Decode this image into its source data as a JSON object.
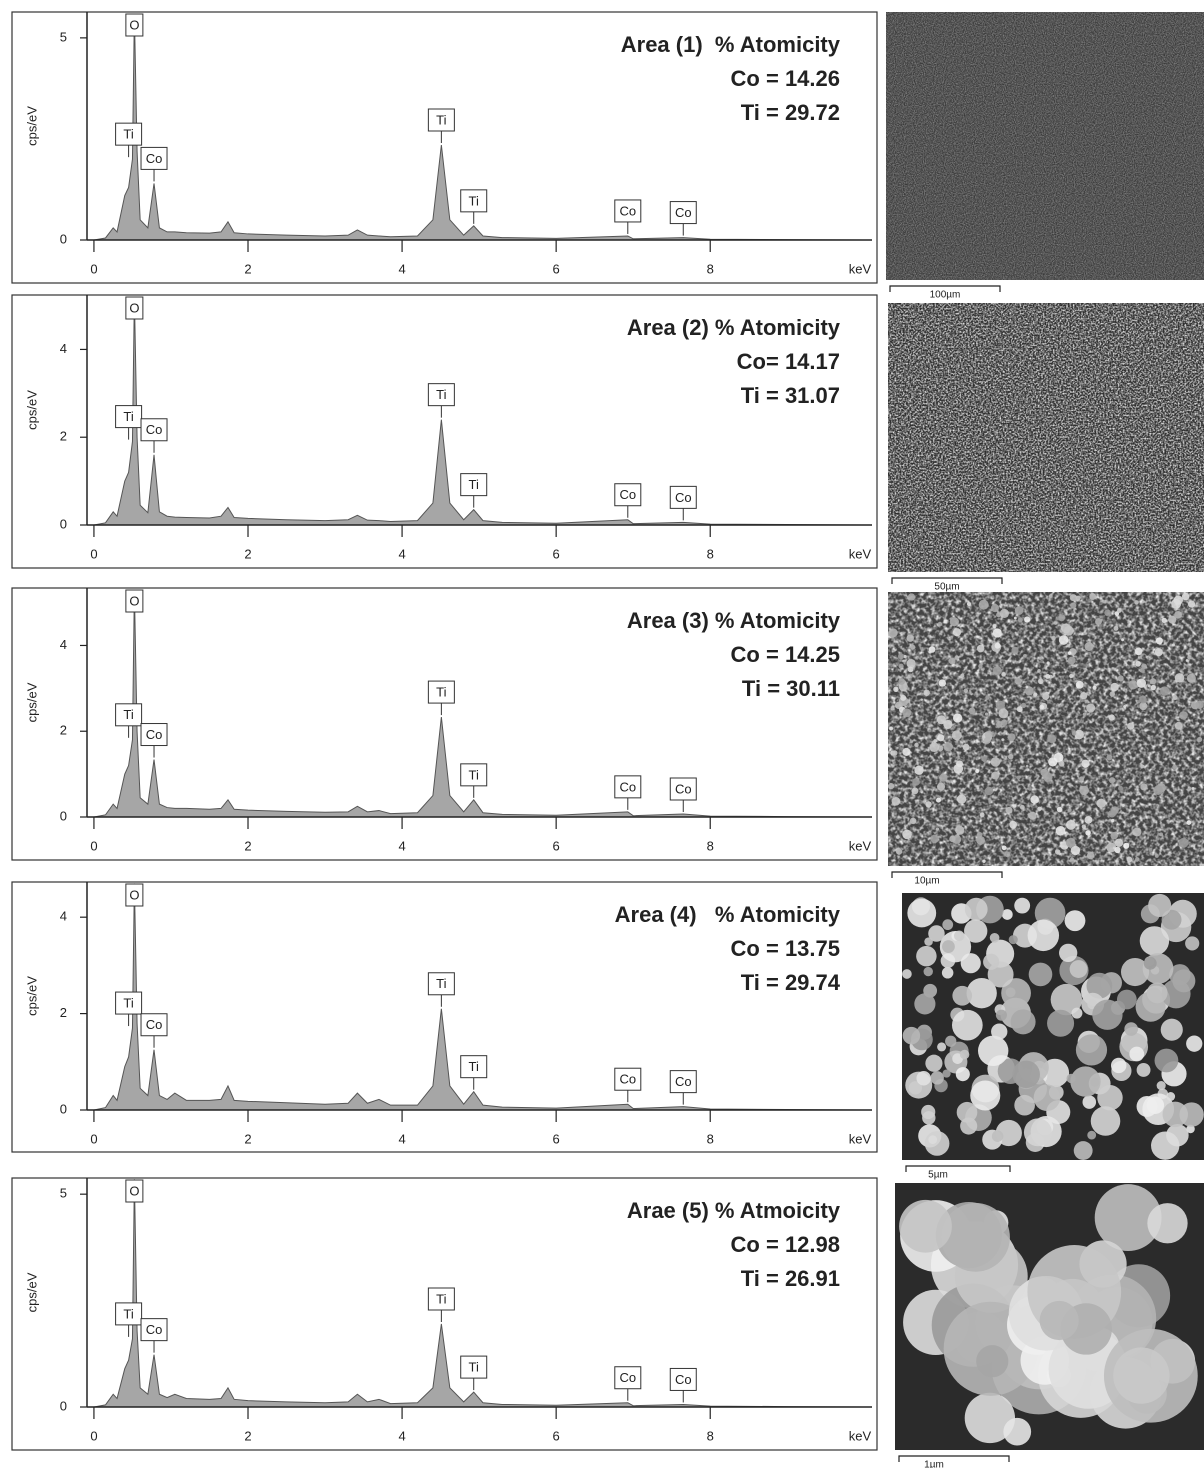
{
  "chart_data": [
    {
      "type": "area",
      "y_label": "cps/eV",
      "x_label": "keV",
      "color": "#a6a6a6",
      "annotation": [
        "Area (1)  % Atomicity",
        "Co = 14.26",
        "Ti = 29.72"
      ],
      "x": [
        0,
        0.15,
        0.25,
        0.3,
        0.4,
        0.45,
        0.5,
        0.525,
        0.56,
        0.6,
        0.7,
        0.78,
        0.85,
        0.95,
        1.05,
        1.2,
        1.5,
        1.65,
        1.74,
        1.82,
        2.0,
        2.5,
        3.0,
        3.3,
        3.42,
        3.55,
        3.7,
        3.85,
        4.2,
        4.4,
        4.51,
        4.62,
        4.8,
        4.93,
        5.05,
        5.3,
        6.0,
        6.93,
        7.0,
        7.65,
        8.0,
        9.0,
        10.0
      ],
      "values": [
        0,
        0.05,
        0.3,
        0.2,
        1.1,
        1.3,
        2.0,
        5.6,
        2.2,
        0.5,
        0.3,
        1.4,
        0.3,
        0.2,
        0.2,
        0.18,
        0.17,
        0.2,
        0.45,
        0.18,
        0.15,
        0.12,
        0.1,
        0.12,
        0.25,
        0.12,
        0.1,
        0.08,
        0.1,
        0.5,
        2.35,
        0.5,
        0.12,
        0.35,
        0.1,
        0.06,
        0.04,
        0.1,
        0.03,
        0.06,
        0.02,
        0.01,
        0
      ],
      "xlim": [
        -0.09,
        10.1
      ],
      "ylim": [
        0,
        5.64
      ],
      "xticks": [
        0,
        2,
        4,
        6,
        8
      ],
      "yticks": [
        0,
        5
      ],
      "peak_labels": [
        {
          "label": "O",
          "x": 0.525
        },
        {
          "label": "Ti",
          "x": 0.45
        },
        {
          "label": "Co",
          "x": 0.78
        },
        {
          "label": "Ti",
          "x": 4.51
        },
        {
          "label": "Ti",
          "x": 4.93
        },
        {
          "label": "Co",
          "x": 6.93
        },
        {
          "label": "Co",
          "x": 7.65
        }
      ]
    },
    {
      "type": "area",
      "y_label": "cps/eV",
      "x_label": "keV",
      "color": "#a6a6a6",
      "annotation": [
        "Area (2) % Atomicity",
        "Co= 14.17",
        "Ti = 31.07"
      ],
      "x": [
        0,
        0.15,
        0.25,
        0.3,
        0.4,
        0.45,
        0.5,
        0.525,
        0.56,
        0.6,
        0.7,
        0.78,
        0.85,
        0.95,
        1.05,
        1.2,
        1.5,
        1.65,
        1.74,
        1.82,
        2.0,
        2.5,
        3.0,
        3.3,
        3.42,
        3.55,
        3.7,
        3.85,
        4.2,
        4.4,
        4.51,
        4.62,
        4.8,
        4.93,
        5.05,
        5.3,
        6.0,
        6.93,
        7.0,
        7.65,
        8.0,
        9.0,
        10.0
      ],
      "values": [
        0,
        0.05,
        0.3,
        0.2,
        1.0,
        1.2,
        1.9,
        5.2,
        2.0,
        0.45,
        0.28,
        1.6,
        0.3,
        0.2,
        0.18,
        0.17,
        0.16,
        0.2,
        0.4,
        0.17,
        0.15,
        0.12,
        0.1,
        0.12,
        0.22,
        0.11,
        0.1,
        0.08,
        0.1,
        0.5,
        2.4,
        0.5,
        0.12,
        0.35,
        0.1,
        0.06,
        0.04,
        0.12,
        0.03,
        0.06,
        0.02,
        0.01,
        0
      ],
      "xlim": [
        -0.09,
        10.1
      ],
      "ylim": [
        0,
        5.24
      ],
      "xticks": [
        0,
        2,
        4,
        6,
        8
      ],
      "yticks": [
        0,
        2,
        4
      ],
      "peak_labels": [
        {
          "label": "O",
          "x": 0.525
        },
        {
          "label": "Ti",
          "x": 0.45
        },
        {
          "label": "Co",
          "x": 0.78
        },
        {
          "label": "Ti",
          "x": 4.51
        },
        {
          "label": "Ti",
          "x": 4.93
        },
        {
          "label": "Co",
          "x": 6.93
        },
        {
          "label": "Co",
          "x": 7.65
        }
      ]
    },
    {
      "type": "area",
      "y_label": "cps/eV",
      "x_label": "keV",
      "color": "#a6a6a6",
      "annotation": [
        "Area (3) % Atomicity",
        "Co = 14.25",
        "Ti = 30.11"
      ],
      "x": [
        0,
        0.15,
        0.25,
        0.3,
        0.4,
        0.45,
        0.5,
        0.525,
        0.56,
        0.6,
        0.7,
        0.78,
        0.85,
        0.95,
        1.05,
        1.2,
        1.5,
        1.65,
        1.74,
        1.82,
        2.0,
        2.5,
        3.0,
        3.3,
        3.42,
        3.55,
        3.7,
        3.85,
        4.2,
        4.4,
        4.51,
        4.62,
        4.8,
        4.93,
        5.05,
        5.3,
        6.0,
        6.93,
        7.0,
        7.65,
        8.0,
        9.0,
        10.0
      ],
      "values": [
        0,
        0.05,
        0.3,
        0.2,
        1.0,
        1.2,
        1.8,
        5.3,
        2.0,
        0.45,
        0.3,
        1.34,
        0.3,
        0.22,
        0.2,
        0.2,
        0.18,
        0.2,
        0.4,
        0.18,
        0.16,
        0.13,
        0.11,
        0.12,
        0.25,
        0.12,
        0.15,
        0.08,
        0.1,
        0.5,
        2.33,
        0.5,
        0.12,
        0.4,
        0.1,
        0.06,
        0.04,
        0.12,
        0.03,
        0.07,
        0.02,
        0.01,
        0
      ],
      "xlim": [
        -0.09,
        10.1
      ],
      "ylim": [
        0,
        5.34
      ],
      "xticks": [
        0,
        2,
        4,
        6,
        8
      ],
      "yticks": [
        0,
        2,
        4
      ],
      "peak_labels": [
        {
          "label": "O",
          "x": 0.525
        },
        {
          "label": "Ti",
          "x": 0.45
        },
        {
          "label": "Co",
          "x": 0.78
        },
        {
          "label": "Ti",
          "x": 4.51
        },
        {
          "label": "Ti",
          "x": 4.93
        },
        {
          "label": "Co",
          "x": 6.93
        },
        {
          "label": "Co",
          "x": 7.65
        }
      ]
    },
    {
      "type": "area",
      "y_label": "cps/eV",
      "x_label": "keV",
      "color": "#a6a6a6",
      "annotation": [
        "Area (4)   % Atomicity",
        "Co = 13.75",
        "Ti = 29.74"
      ],
      "x": [
        0,
        0.15,
        0.25,
        0.3,
        0.4,
        0.45,
        0.5,
        0.525,
        0.56,
        0.6,
        0.7,
        0.78,
        0.85,
        0.95,
        1.05,
        1.2,
        1.5,
        1.65,
        1.74,
        1.82,
        2.0,
        2.5,
        3.0,
        3.3,
        3.42,
        3.55,
        3.7,
        3.85,
        4.2,
        4.4,
        4.51,
        4.62,
        4.8,
        4.93,
        5.05,
        5.3,
        6.0,
        6.93,
        7.0,
        7.65,
        8.0,
        9.0,
        10.0
      ],
      "values": [
        0,
        0.05,
        0.3,
        0.2,
        0.9,
        1.1,
        1.7,
        4.7,
        1.8,
        0.45,
        0.3,
        1.25,
        0.3,
        0.22,
        0.35,
        0.2,
        0.2,
        0.22,
        0.5,
        0.2,
        0.18,
        0.15,
        0.12,
        0.14,
        0.35,
        0.14,
        0.22,
        0.1,
        0.1,
        0.5,
        2.1,
        0.5,
        0.12,
        0.38,
        0.1,
        0.06,
        0.04,
        0.12,
        0.03,
        0.07,
        0.02,
        0.01,
        0
      ],
      "xlim": [
        -0.09,
        10.1
      ],
      "ylim": [
        0,
        4.73
      ],
      "xticks": [
        0,
        2,
        4,
        6,
        8
      ],
      "yticks": [
        0,
        2,
        4
      ],
      "peak_labels": [
        {
          "label": "O",
          "x": 0.525
        },
        {
          "label": "Ti",
          "x": 0.45
        },
        {
          "label": "Co",
          "x": 0.78
        },
        {
          "label": "Ti",
          "x": 4.51
        },
        {
          "label": "Ti",
          "x": 4.93
        },
        {
          "label": "Co",
          "x": 6.93
        },
        {
          "label": "Co",
          "x": 7.65
        }
      ]
    },
    {
      "type": "area",
      "y_label": "cps/eV",
      "x_label": "keV",
      "color": "#a6a6a6",
      "annotation": [
        "Arae (5) % Atmoicity",
        "Co = 12.98",
        "Ti = 26.91"
      ],
      "x": [
        0,
        0.15,
        0.25,
        0.3,
        0.4,
        0.45,
        0.5,
        0.525,
        0.56,
        0.6,
        0.7,
        0.78,
        0.85,
        0.95,
        1.05,
        1.2,
        1.5,
        1.65,
        1.74,
        1.82,
        2.0,
        2.5,
        3.0,
        3.3,
        3.42,
        3.55,
        3.7,
        3.85,
        4.2,
        4.4,
        4.51,
        4.62,
        4.8,
        4.93,
        5.05,
        5.3,
        6.0,
        6.93,
        7.0,
        7.65,
        8.0,
        9.0,
        10.0
      ],
      "values": [
        0,
        0.05,
        0.3,
        0.2,
        0.9,
        1.1,
        1.6,
        5.35,
        1.8,
        0.45,
        0.3,
        1.23,
        0.3,
        0.22,
        0.3,
        0.2,
        0.18,
        0.2,
        0.45,
        0.18,
        0.15,
        0.12,
        0.1,
        0.12,
        0.3,
        0.12,
        0.18,
        0.08,
        0.1,
        0.45,
        1.95,
        0.45,
        0.12,
        0.35,
        0.1,
        0.06,
        0.04,
        0.1,
        0.03,
        0.06,
        0.02,
        0.01,
        0
      ],
      "xlim": [
        -0.09,
        10.1
      ],
      "ylim": [
        0,
        5.38
      ],
      "xticks": [
        0,
        2,
        4,
        6,
        8
      ],
      "yticks": [
        0,
        5
      ],
      "peak_labels": [
        {
          "label": "O",
          "x": 0.525
        },
        {
          "label": "Ti",
          "x": 0.45
        },
        {
          "label": "Co",
          "x": 0.78
        },
        {
          "label": "Ti",
          "x": 4.51
        },
        {
          "label": "Ti",
          "x": 4.93
        },
        {
          "label": "Co",
          "x": 6.93
        },
        {
          "label": "Co",
          "x": 7.65
        }
      ]
    }
  ],
  "images": [
    {
      "scale_bar": "100µm"
    },
    {
      "scale_bar": "50µm"
    },
    {
      "scale_bar": "10µm"
    },
    {
      "scale_bar": "5µm"
    },
    {
      "scale_bar": "1µm"
    }
  ]
}
